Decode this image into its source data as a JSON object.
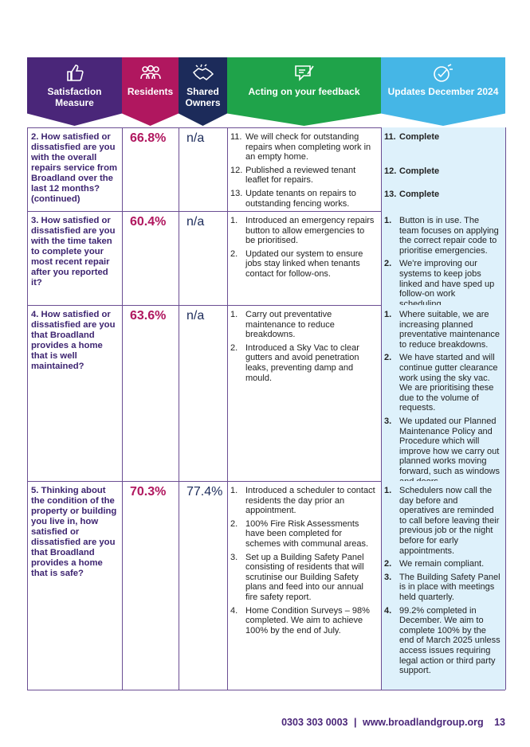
{
  "header": {
    "columns": [
      "Satisfaction Measure",
      "Residents",
      "Shared Owners",
      "Acting on your feedback",
      "Updates December 2024"
    ]
  },
  "rows": [
    {
      "measure": "2. How satisfied or dissatisfied are you with the overall repairs service from Broadland over the last 12 months? (continued)",
      "residents": "66.8%",
      "shared_owners": "n/a",
      "actions": [
        {
          "n": "11.",
          "text": "We will check for outstanding repairs when completing work in an empty home."
        },
        {
          "n": "12.",
          "text": "Published a reviewed tenant leaflet for repairs."
        },
        {
          "n": "13.",
          "text": "Update tenants on repairs to outstanding fencing works."
        }
      ],
      "updates": [
        {
          "n": "11.",
          "text": "Complete"
        },
        {
          "n": "12.",
          "text": "Complete"
        },
        {
          "n": "13.",
          "text": "Complete"
        }
      ]
    },
    {
      "measure": "3. How satisfied or dissatisfied are you with the time taken to complete your most recent repair after you reported it?",
      "residents": "60.4%",
      "shared_owners": "n/a",
      "actions": [
        {
          "n": "1.",
          "text": "Introduced an emergency repairs button to allow emergencies to be prioritised."
        },
        {
          "n": "2.",
          "text": "Updated our system to ensure jobs stay linked when tenants contact for follow-ons."
        }
      ],
      "updates": [
        {
          "n": "1.",
          "text": "Button is in use. The team focuses on applying the correct repair code to prioritise emergencies."
        },
        {
          "n": "2.",
          "text": "We're improving our systems to keep jobs linked and have sped up follow-on work scheduling."
        }
      ]
    },
    {
      "measure": "4. How satisfied or dissatisfied are you that Broadland provides a home that is well maintained?",
      "residents": "63.6%",
      "shared_owners": "n/a",
      "actions": [
        {
          "n": "1.",
          "text": "Carry out preventative maintenance to reduce breakdowns."
        },
        {
          "n": "2.",
          "text": "Introduced a Sky Vac to clear gutters and avoid penetration leaks, preventing damp and mould."
        }
      ],
      "updates": [
        {
          "n": "1.",
          "text": "Where suitable, we are increasing planned preventative maintenance to reduce breakdowns."
        },
        {
          "n": "2.",
          "text": "We have started and will continue gutter clearance work using the sky vac. We are prioritising these due to the volume of requests."
        },
        {
          "n": "3.",
          "text": "We updated our Planned Maintenance Policy and Procedure which will improve how we carry out planned works moving forward, such as windows and doors."
        }
      ]
    },
    {
      "measure": "5. Thinking about the condition of the property or building you live in, how satisfied or dissatisfied are you that Broadland provides a home that is safe?",
      "residents": "70.3%",
      "shared_owners": "77.4%",
      "actions": [
        {
          "n": "1.",
          "text": "Introduced a scheduler to contact residents the day prior an appointment."
        },
        {
          "n": "2.",
          "text": "100% Fire Risk Assessments have been completed for schemes with communal areas."
        },
        {
          "n": "3.",
          "text": "Set up a Building Safety Panel consisting of residents that will scrutinise our Building Safety plans and feed into our annual fire safety report."
        },
        {
          "n": "4.",
          "text": "Home Condition Surveys – 98% completed. We aim to achieve 100% by the end of July."
        }
      ],
      "updates": [
        {
          "n": "1.",
          "text": "Schedulers now call the day before and operatives are reminded to call before leaving their previous job or the night before for early appointments."
        },
        {
          "n": "2.",
          "text": "We remain compliant."
        },
        {
          "n": "3.",
          "text": "The Building Safety Panel is in place with meetings held quarterly."
        },
        {
          "n": "4.",
          "text": "99.2% completed in December. We aim to complete 100% by the end of March 2025 unless access issues requiring legal action or third party support."
        }
      ]
    }
  ],
  "footer": {
    "phone": "0303 303 0003",
    "separator": "|",
    "website": "www.broadlandgroup.org",
    "page": "13"
  }
}
